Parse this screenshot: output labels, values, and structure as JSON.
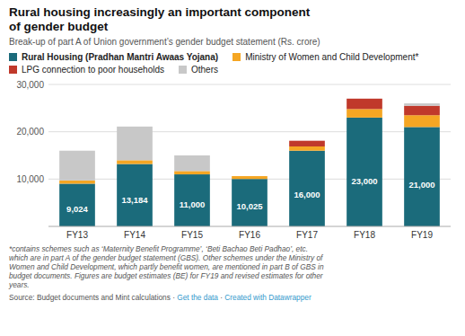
{
  "chart_data": {
    "type": "bar",
    "stacked": true,
    "title": "Rural housing increasingly an important component\nof gender budget",
    "subtitle": "Break-up of part A of Union government’s gender budget statement (Rs. crore)",
    "categories": [
      "FY13",
      "FY14",
      "FY15",
      "FY16",
      "FY17",
      "FY18",
      "FY19"
    ],
    "series": [
      {
        "name": "Rural Housing (Pradhan Mantri Awaas Yojana)",
        "color": "#1b6b7b",
        "values": [
          9024,
          13184,
          11000,
          10025,
          16000,
          23000,
          21000
        ],
        "data_labels": true,
        "value_labels": [
          "9,024",
          "13,184",
          "11,000",
          "10,025",
          "16,000",
          "23,000",
          "21,000"
        ]
      },
      {
        "name": "Ministry of Women and Child Development*",
        "color": "#f5a623",
        "values": [
          700,
          800,
          700,
          600,
          900,
          1800,
          2500
        ]
      },
      {
        "name": "LPG connection to poor households",
        "color": "#c0392b",
        "values": [
          0,
          0,
          0,
          0,
          1200,
          2200,
          2000
        ]
      },
      {
        "name": "Others",
        "color": "#c8c8c8",
        "values": [
          6276,
          7116,
          3300,
          0,
          0,
          0,
          500
        ]
      }
    ],
    "ylim": [
      0,
      30000
    ],
    "yticks": [
      {
        "value": 10000,
        "label": "10,000"
      },
      {
        "value": 20000,
        "label": "20,000"
      },
      {
        "value": 30000,
        "label": "30,000"
      }
    ],
    "grid": true,
    "footnote": "*contains schemes such as ‘Maternity Benefit Programme’, ‘Beti Bachao Beti Padhao’, etc.\nwhich are in part A of the gender budget statement (GBS). Other schemes under the Ministry of\nWomen and Child Development, which partly benefit women, are mentioned in part B of GBS in\nbudget documents. Figures are budget estimates (BE) for FY19 and revised estimates for other\nyears.",
    "source": [
      "Source: Budget documents and Mint calculations · ",
      "Get the data",
      " · ",
      "Created with Datawrapper"
    ]
  }
}
